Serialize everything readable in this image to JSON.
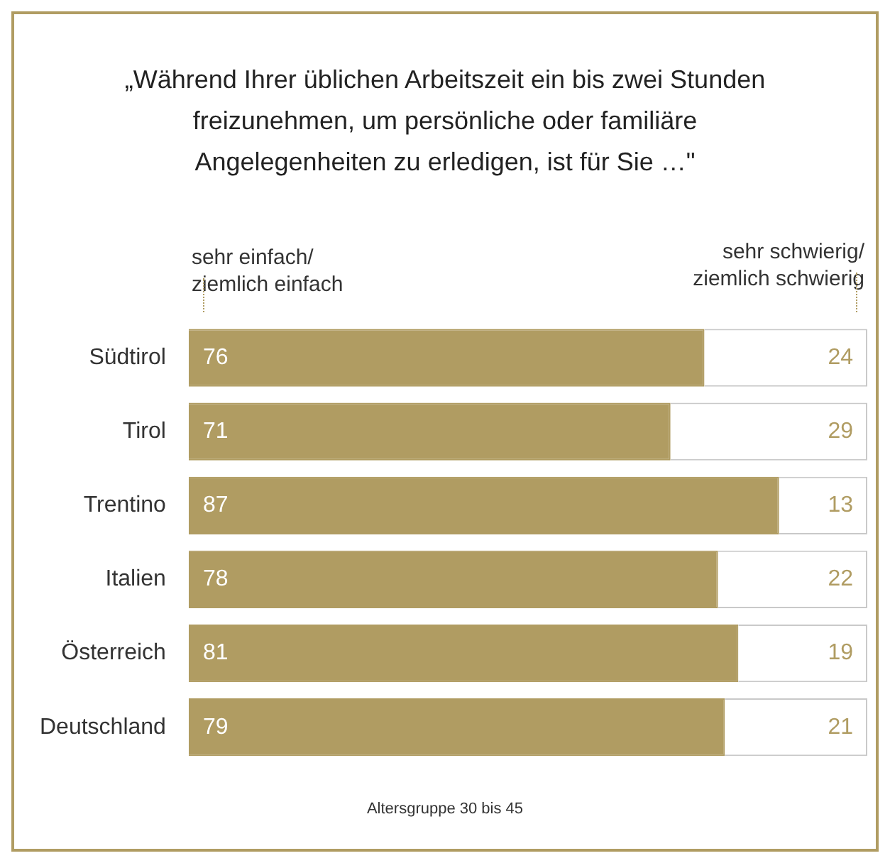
{
  "chart_data": {
    "type": "bar",
    "orientation": "horizontal",
    "stacked": true,
    "title": "„Während Ihrer üblichen Arbeitszeit ein bis zwei Stunden freizunehmen, um persönliche oder familiäre Angelegenheiten zu erledigen, ist für Sie …\"",
    "categories": [
      "Südtirol",
      "Tirol",
      "Trentino",
      "Italien",
      "Österreich",
      "Deutschland"
    ],
    "series": [
      {
        "name": "sehr einfach/\nziemlich einfach",
        "color": "#b09c62",
        "values": [
          76,
          71,
          87,
          78,
          81,
          79
        ]
      },
      {
        "name": "sehr schwierig/\nziemlich schwierig",
        "color": "#ffffff",
        "values": [
          24,
          29,
          13,
          22,
          19,
          21
        ]
      }
    ],
    "xlim": [
      0,
      100
    ],
    "tick_labels": "y",
    "data_labels": true,
    "annotations": [
      "Altersgruppe 30 bis 45"
    ]
  }
}
